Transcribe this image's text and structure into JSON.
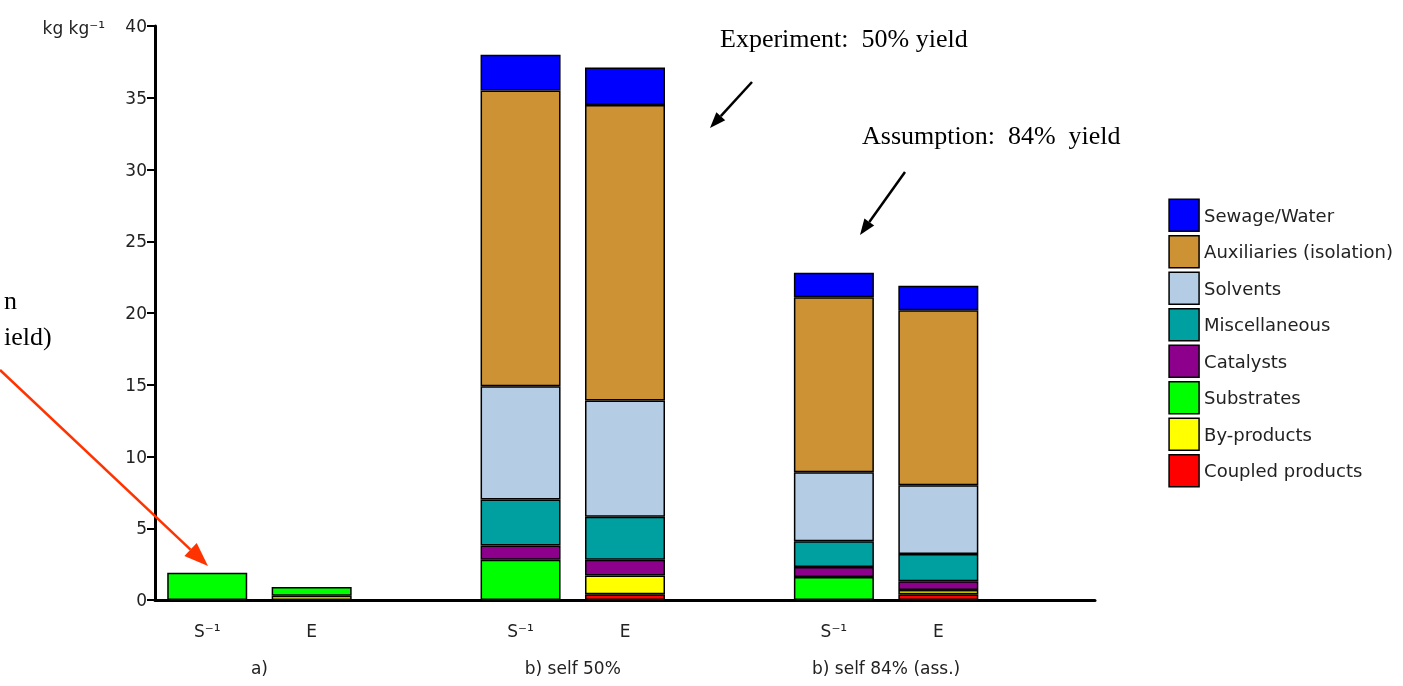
{
  "chart_data": {
    "type": "bar",
    "stacked": true,
    "ylabel": "kg kg⁻¹",
    "categories": [
      "S⁻¹",
      "E",
      null,
      "S⁻¹",
      "E",
      null,
      "S⁻¹",
      "E",
      null
    ],
    "series": [
      {
        "name": "Coupled products",
        "color": "#ff0000",
        "values": [
          null,
          null,
          null,
          null,
          0.4,
          null,
          null,
          0.4,
          null
        ]
      },
      {
        "name": "By-products",
        "color": "#ffff00",
        "values": [
          null,
          0.3,
          null,
          null,
          1.3,
          null,
          null,
          0.3,
          null
        ]
      },
      {
        "name": "Substrates",
        "color": "#00ff00",
        "values": [
          1.9,
          0.6,
          null,
          2.8,
          null,
          null,
          1.6,
          null,
          null
        ]
      },
      {
        "name": "Catalysts",
        "color": "#8c008c",
        "values": [
          null,
          null,
          null,
          1.0,
          1.1,
          null,
          0.7,
          0.6,
          null
        ]
      },
      {
        "name": "Miscellaneous",
        "color": "#00a0a0",
        "values": [
          null,
          null,
          null,
          3.2,
          3.0,
          null,
          1.8,
          1.9,
          null
        ]
      },
      {
        "name": "Solvents",
        "color": "#b4cce4",
        "values": [
          null,
          null,
          null,
          7.9,
          8.1,
          null,
          4.8,
          4.8,
          null
        ]
      },
      {
        "name": "Auxiliaries (isolation)",
        "color": "#cc9233",
        "values": [
          null,
          null,
          null,
          20.6,
          20.6,
          null,
          12.2,
          12.2,
          null
        ]
      },
      {
        "name": "Sewage/Water",
        "color": "#0000ff",
        "values": [
          null,
          null,
          null,
          2.5,
          2.6,
          null,
          1.7,
          1.7,
          null
        ]
      }
    ],
    "ylim": [
      0,
      40
    ],
    "yticks": [
      0,
      5,
      10,
      15,
      20,
      25,
      30,
      35,
      40
    ],
    "grid": false,
    "legend": "right",
    "annotations": [
      "a)",
      "b) self 50%",
      "b) self 84% (ass.)",
      "Experiment:  50% yield",
      "Assumption:  84%  yield",
      "n\nield)"
    ]
  }
}
